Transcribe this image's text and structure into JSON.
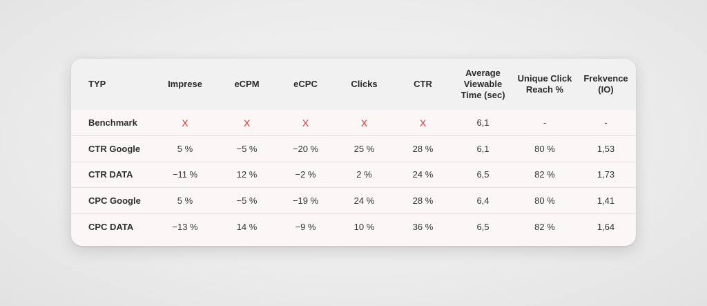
{
  "table": {
    "headers": [
      "TYP",
      "Imprese",
      "eCPM",
      "eCPC",
      "Clicks",
      "CTR",
      "Average\nViewable\nTime (sec)",
      "Unique Click\nReach %",
      "Frekvence\n(IO)"
    ],
    "rows": [
      [
        "Benchmark",
        "X",
        "X",
        "X",
        "X",
        "X",
        "6,1",
        "-",
        "-"
      ],
      [
        "CTR Google",
        "5 %",
        "−5 %",
        "−20 %",
        "25 %",
        "28 %",
        "6,1",
        "80 %",
        "1,53"
      ],
      [
        "CTR DATA",
        "−11 %",
        "12 %",
        "−2 %",
        "2 %",
        "24 %",
        "6,5",
        "82 %",
        "1,73"
      ],
      [
        "CPC Google",
        "5 %",
        "−5 %",
        "−19 %",
        "24 %",
        "28 %",
        "6,4",
        "80 %",
        "1,41"
      ],
      [
        "CPC DATA",
        "−13 %",
        "14 %",
        "−9 %",
        "10 %",
        "36 %",
        "6,5",
        "82 %",
        "1,64"
      ]
    ]
  },
  "colors": {
    "cross": "#e0352b",
    "header_bg": "#f1f1f1",
    "row_bg": "#faf7f6",
    "divider": "#e6e1df"
  }
}
